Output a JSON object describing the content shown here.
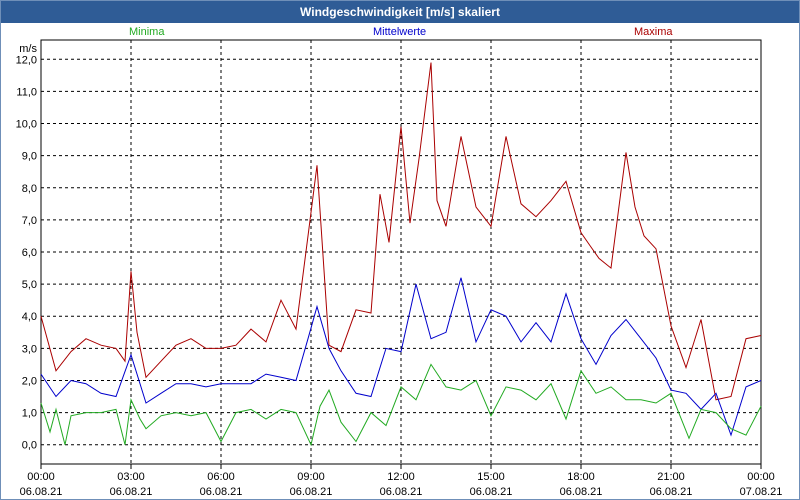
{
  "title": "Windgeschwindigkeit [m/s] skaliert",
  "legend": {
    "min": "Minima",
    "mean": "Mittelwerte",
    "max": "Maxima"
  },
  "colors": {
    "min": "#22aa22",
    "mean": "#0000cc",
    "max": "#aa0000",
    "title_bg": "#2f5c96",
    "grid": "#000000"
  },
  "chart_data": {
    "type": "line",
    "title": "Windgeschwindigkeit [m/s] skaliert",
    "ylabel": "m/s",
    "xlabel": "",
    "ylim": [
      -0.6,
      12.6
    ],
    "xlim": [
      0,
      24
    ],
    "yticks": [
      "0,0",
      "1,0",
      "2,0",
      "3,0",
      "4,0",
      "5,0",
      "6,0",
      "7,0",
      "8,0",
      "9,0",
      "10,0",
      "11,0",
      "12,0"
    ],
    "xticks": [
      {
        "time": "00:00",
        "date": "06.08.21"
      },
      {
        "time": "03:00",
        "date": "06.08.21"
      },
      {
        "time": "06:00",
        "date": "06.08.21"
      },
      {
        "time": "09:00",
        "date": "06.08.21"
      },
      {
        "time": "12:00",
        "date": "06.08.21"
      },
      {
        "time": "15:00",
        "date": "06.08.21"
      },
      {
        "time": "18:00",
        "date": "06.08.21"
      },
      {
        "time": "21:00",
        "date": "06.08.21"
      },
      {
        "time": "00:00",
        "date": "07.08.21"
      }
    ],
    "grid": true,
    "series": [
      {
        "name": "Maxima",
        "color": "#aa0000",
        "x": [
          0,
          0.5,
          1,
          1.5,
          2,
          2.5,
          2.8,
          3,
          3.2,
          3.5,
          4,
          4.5,
          5,
          5.5,
          6,
          6.5,
          7,
          7.5,
          8,
          8.5,
          8.9,
          9.2,
          9.6,
          10,
          10.5,
          11,
          11.3,
          11.6,
          12,
          12.3,
          12.6,
          13,
          13.2,
          13.5,
          14,
          14.5,
          15,
          15.5,
          16,
          16.5,
          17,
          17.5,
          18,
          18.3,
          18.6,
          19,
          19.5,
          19.8,
          20.1,
          20.5,
          21,
          21.5,
          22,
          22.5,
          23,
          23.5,
          24
        ],
        "values": [
          4.0,
          2.3,
          2.9,
          3.3,
          3.1,
          3.0,
          2.6,
          5.4,
          3.5,
          2.1,
          2.6,
          3.1,
          3.3,
          3.0,
          3.0,
          3.1,
          3.6,
          3.2,
          4.5,
          3.6,
          6.5,
          8.7,
          3.1,
          2.9,
          4.2,
          4.1,
          7.8,
          6.3,
          9.9,
          6.9,
          8.9,
          11.9,
          7.6,
          6.8,
          9.6,
          7.4,
          6.8,
          9.6,
          7.5,
          7.1,
          7.6,
          8.2,
          6.6,
          6.2,
          5.8,
          5.5,
          9.1,
          7.4,
          6.5,
          6.1,
          3.7,
          2.4,
          3.9,
          1.4,
          1.5,
          3.3,
          3.4
        ]
      },
      {
        "name": "Mittelwerte",
        "color": "#0000cc",
        "x": [
          0,
          0.5,
          1,
          1.5,
          2,
          2.5,
          3,
          3.5,
          4,
          4.5,
          5,
          5.5,
          6,
          6.5,
          7,
          7.5,
          8,
          8.5,
          8.9,
          9.2,
          9.6,
          10,
          10.5,
          11,
          11.5,
          12,
          12.5,
          13,
          13.5,
          14,
          14.5,
          15,
          15.5,
          16,
          16.5,
          17,
          17.5,
          18,
          18.5,
          19,
          19.5,
          20,
          20.5,
          21,
          21.5,
          22,
          22.5,
          23,
          23.5,
          24
        ],
        "values": [
          2.2,
          1.5,
          2.0,
          1.9,
          1.6,
          1.5,
          2.8,
          1.3,
          1.6,
          1.9,
          1.9,
          1.8,
          1.9,
          1.9,
          1.9,
          2.2,
          2.1,
          2.0,
          3.3,
          4.3,
          3.0,
          2.3,
          1.6,
          1.5,
          3.0,
          2.9,
          5.0,
          3.3,
          3.5,
          5.2,
          3.2,
          4.2,
          4.0,
          3.2,
          3.8,
          3.2,
          4.7,
          3.3,
          2.5,
          3.4,
          3.9,
          3.3,
          2.7,
          1.7,
          1.6,
          1.1,
          1.6,
          0.3,
          1.8,
          2.0
        ]
      },
      {
        "name": "Minima",
        "color": "#22aa22",
        "x": [
          0,
          0.3,
          0.5,
          0.8,
          1,
          1.5,
          2,
          2.5,
          2.8,
          3,
          3.3,
          3.5,
          4,
          4.5,
          5,
          5.5,
          6,
          6.5,
          7,
          7.5,
          8,
          8.5,
          9,
          9.3,
          9.6,
          10,
          10.5,
          11,
          11.5,
          12,
          12.5,
          13,
          13.5,
          14,
          14.5,
          15,
          15.5,
          16,
          16.5,
          17,
          17.5,
          18,
          18.5,
          19,
          19.5,
          20,
          20.5,
          21,
          21.3,
          21.6,
          22,
          22.5,
          23,
          23.5,
          24
        ],
        "values": [
          1.3,
          0.4,
          1.1,
          0.0,
          0.9,
          1.0,
          1.0,
          1.1,
          0.0,
          1.4,
          0.8,
          0.5,
          0.9,
          1.0,
          0.9,
          1.0,
          0.1,
          1.0,
          1.1,
          0.8,
          1.1,
          1.0,
          0.0,
          1.2,
          1.7,
          0.7,
          0.1,
          1.0,
          0.6,
          1.8,
          1.4,
          2.5,
          1.8,
          1.7,
          2.0,
          0.9,
          1.8,
          1.7,
          1.4,
          1.9,
          0.8,
          2.3,
          1.6,
          1.8,
          1.4,
          1.4,
          1.3,
          1.6,
          0.9,
          0.2,
          1.1,
          1.0,
          0.5,
          0.3,
          1.2
        ]
      }
    ]
  }
}
